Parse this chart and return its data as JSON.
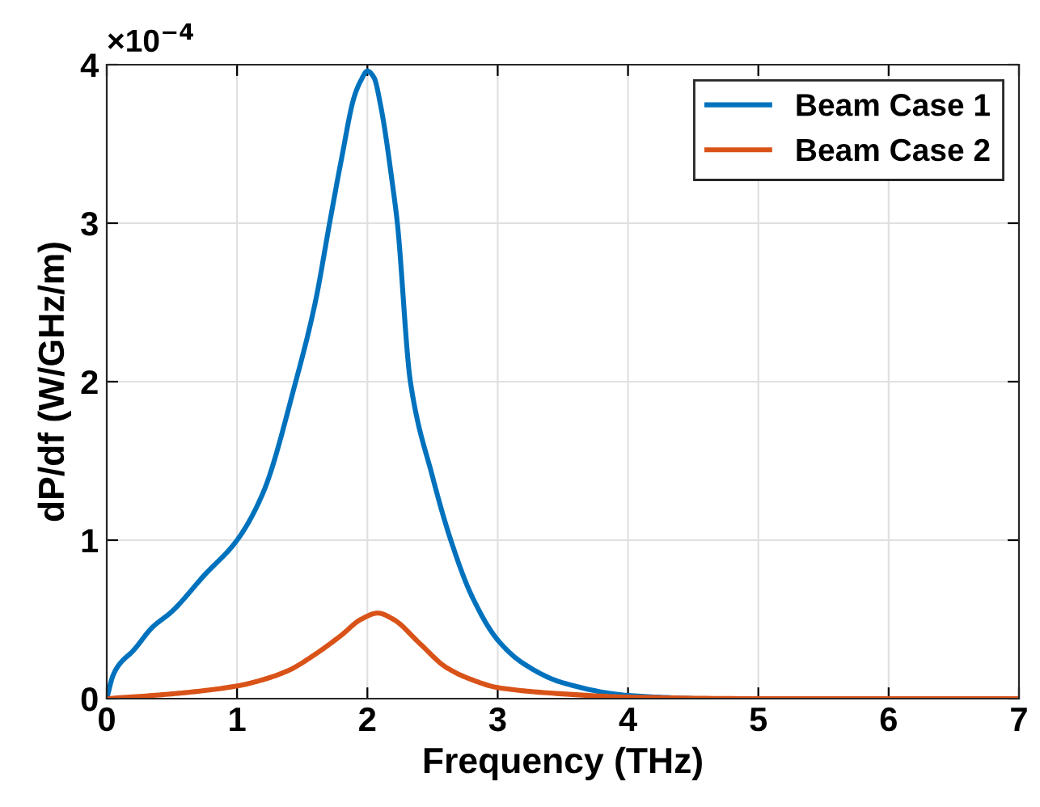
{
  "chart_data": {
    "type": "line",
    "xlabel": "Frequency (THz)",
    "ylabel": "dP/df (W/GHz/m)",
    "annotations": [
      "×10$^{−4}$"
    ],
    "xlim": [
      0,
      7
    ],
    "xticks": [
      0,
      1,
      2,
      3,
      4,
      5,
      6,
      7
    ],
    "ylim": [
      0,
      4
    ],
    "yticks": [
      0,
      1,
      2,
      3,
      4
    ],
    "grid": true,
    "legend": "top right",
    "marker": "none",
    "line_style": "solid",
    "series": [
      {
        "name": "Beam Case 1",
        "color": "#0072bd",
        "x": [
          0,
          0.05,
          0.1,
          0.2,
          0.35,
          0.5,
          0.75,
          1.0,
          1.2,
          1.45,
          1.6,
          1.71,
          1.8,
          1.9,
          1.95,
          2.0,
          2.05,
          2.1,
          2.2,
          2.23,
          2.33,
          2.5,
          2.64,
          2.8,
          3.0,
          3.2,
          3.5,
          4.0,
          4.5
        ],
        "values": [
          0,
          0.15,
          0.22,
          0.3,
          0.45,
          0.55,
          0.78,
          1.0,
          1.3,
          2.0,
          2.5,
          3.0,
          3.4,
          3.8,
          3.9,
          3.96,
          3.92,
          3.75,
          3.2,
          3.0,
          2.0,
          1.4,
          1.0,
          0.65,
          0.37,
          0.22,
          0.1,
          0.02,
          0
        ]
      },
      {
        "name": "Beam Case 2",
        "color": "#d95319",
        "x": [
          0,
          0.5,
          1.0,
          1.2,
          1.4,
          1.6,
          1.8,
          1.95,
          2.08,
          2.2,
          2.4,
          2.6,
          2.8,
          3.0,
          3.5,
          4.0,
          5.0,
          7.0
        ],
        "values": [
          0,
          0.03,
          0.08,
          0.12,
          0.18,
          0.28,
          0.4,
          0.5,
          0.54,
          0.5,
          0.35,
          0.2,
          0.12,
          0.07,
          0.03,
          0.01,
          0,
          0
        ]
      }
    ]
  }
}
